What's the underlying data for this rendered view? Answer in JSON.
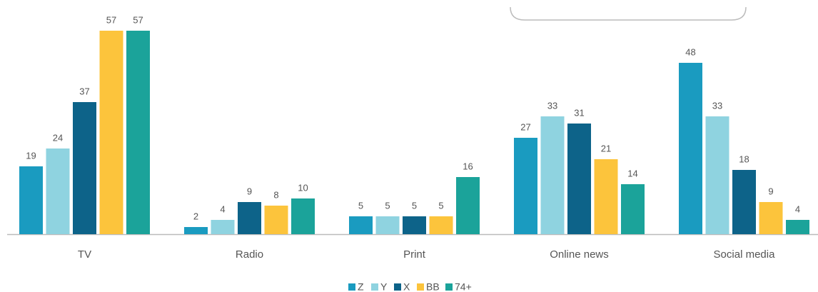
{
  "chart_data": {
    "type": "bar",
    "categories": [
      "TV",
      "Radio",
      "Print",
      "Online news",
      "Social media"
    ],
    "series": [
      {
        "name": "Z",
        "color": "#1a9bc0",
        "values": [
          19,
          2,
          5,
          27,
          48
        ]
      },
      {
        "name": "Y",
        "color": "#8fd3e0",
        "values": [
          24,
          4,
          5,
          33,
          33
        ]
      },
      {
        "name": "X",
        "color": "#0d6389",
        "values": [
          37,
          9,
          5,
          31,
          18
        ]
      },
      {
        "name": "BB",
        "color": "#fcc43c",
        "values": [
          57,
          8,
          5,
          21,
          9
        ]
      },
      {
        "name": "74+",
        "color": "#1ba39a",
        "values": [
          57,
          10,
          16,
          14,
          4
        ]
      }
    ],
    "legend": "bottom"
  }
}
